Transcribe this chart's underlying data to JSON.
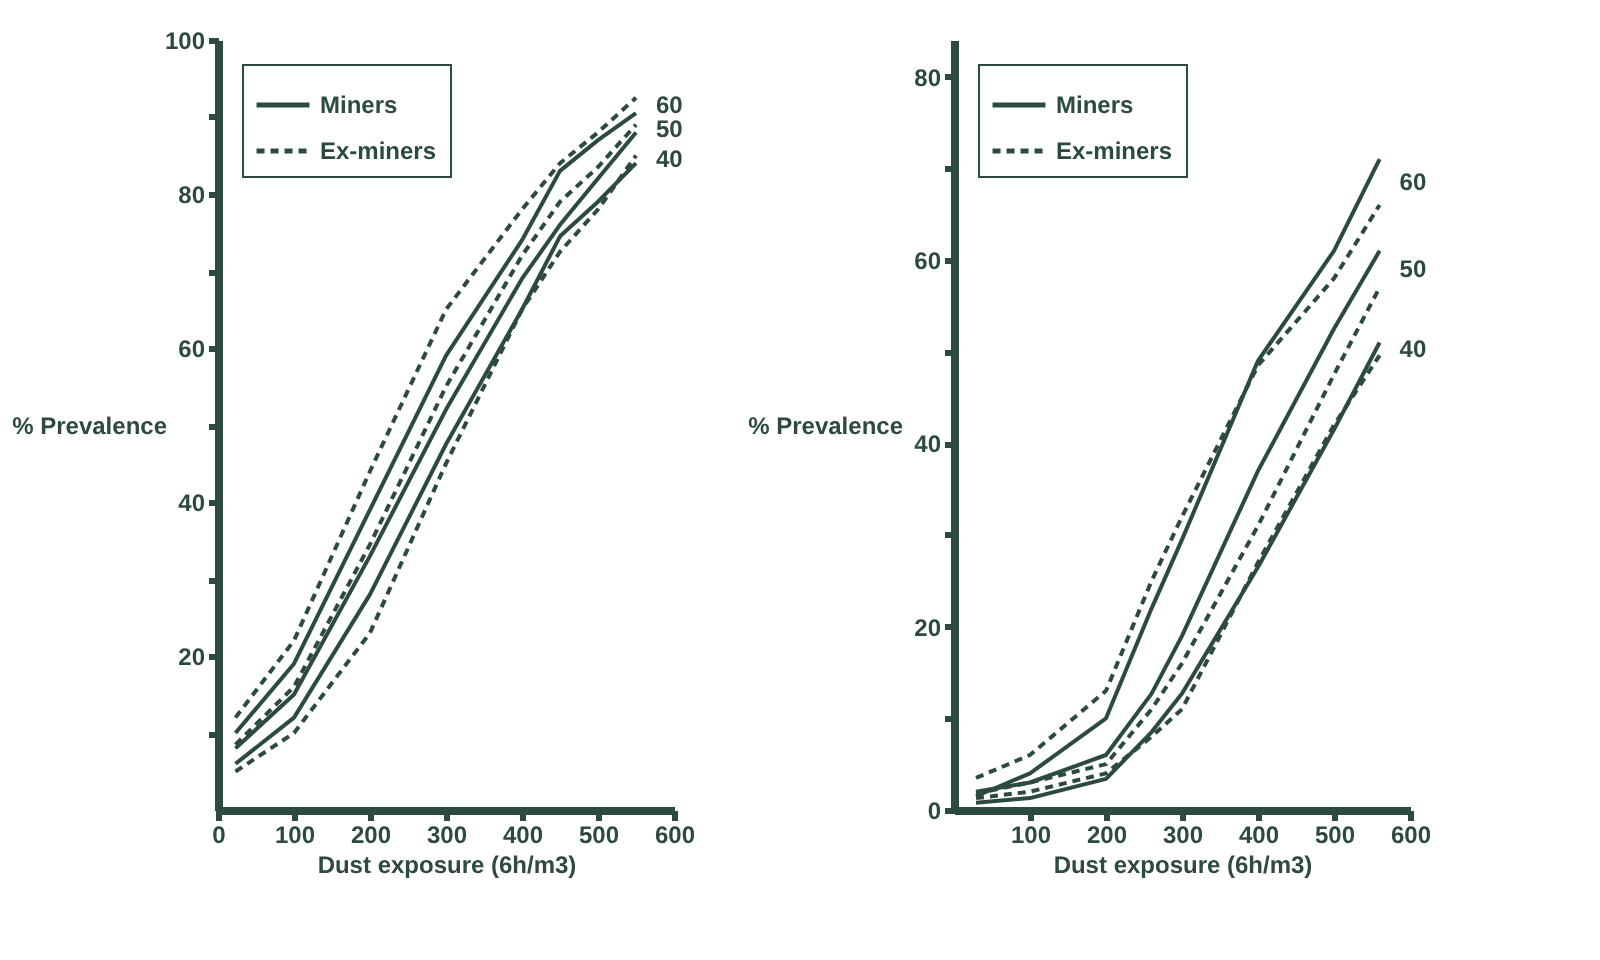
{
  "chart_data": [
    {
      "type": "line",
      "xlabel": "Dust exposure (6h/m3)",
      "ylabel": "% Prevalence",
      "xlim": [
        0,
        600
      ],
      "ylim": [
        0,
        100
      ],
      "xticks": [
        0,
        100,
        200,
        300,
        400,
        500,
        600
      ],
      "yticks": [
        {
          "value": 10,
          "label": null
        },
        20,
        {
          "value": 30,
          "label": null
        },
        40,
        {
          "value": 50,
          "label": null
        },
        60,
        {
          "value": 70,
          "label": null
        },
        80,
        {
          "value": 90,
          "label": null
        },
        100
      ],
      "grid": false,
      "legend": "top left",
      "x": [
        23,
        100,
        200,
        300,
        400,
        450,
        500,
        550
      ],
      "series": [
        {
          "name": "Miners",
          "color": "#2d4a3e",
          "line_style": "solid",
          "values": [
            10,
            19,
            39,
            59,
            74,
            83,
            87,
            90.5
          ]
        },
        {
          "name": "Ex-miners",
          "color": "#2d4a3e",
          "line_style": "dashed",
          "values": [
            12,
            22,
            44,
            65,
            78,
            84,
            88,
            92.5
          ]
        },
        {
          "color": "#2d4a3e",
          "line_style": "solid",
          "values": [
            8,
            15,
            33,
            52,
            69,
            76,
            82,
            88
          ]
        },
        {
          "color": "#2d4a3e",
          "line_style": "dashed",
          "values": [
            8.5,
            16,
            34.5,
            55,
            72,
            79,
            83.5,
            89
          ]
        },
        {
          "color": "#2d4a3e",
          "line_style": "solid",
          "values": [
            6,
            12,
            28,
            47.5,
            65,
            74.5,
            79,
            84
          ]
        },
        {
          "color": "#2d4a3e",
          "line_style": "dashed",
          "values": [
            5,
            10,
            23,
            45,
            65,
            72.5,
            78,
            85
          ]
        }
      ],
      "annotations": [
        "60",
        "50",
        "40"
      ]
    },
    {
      "type": "line",
      "xlabel": "Dust exposure (6h/m3)",
      "ylabel": "% Prevalence",
      "xlim": [
        0,
        600
      ],
      "ylim": [
        0,
        84
      ],
      "xticks": [
        100,
        200,
        300,
        400,
        500,
        600
      ],
      "yticks": [
        0,
        {
          "value": 10,
          "label": null
        },
        20,
        {
          "value": 30,
          "label": null
        },
        40,
        {
          "value": 50,
          "label": null
        },
        60,
        {
          "value": 70,
          "label": null
        },
        80
      ],
      "grid": false,
      "legend": "top left",
      "x": [
        29,
        100,
        200,
        260,
        300,
        400,
        500,
        560
      ],
      "series": [
        {
          "name": "Miners",
          "color": "#2d4a3e",
          "line_style": "solid",
          "values": [
            1.5,
            4,
            10,
            22,
            29.5,
            49,
            61,
            71
          ]
        },
        {
          "name": "Ex-miners",
          "color": "#2d4a3e",
          "line_style": "dashed",
          "values": [
            3.5,
            6,
            13,
            25,
            32,
            48.5,
            58,
            66
          ]
        },
        {
          "color": "#2d4a3e",
          "line_style": "solid",
          "values": [
            2,
            3,
            6,
            12.7,
            19,
            37,
            52.5,
            61
          ]
        },
        {
          "color": "#2d4a3e",
          "line_style": "dashed",
          "values": [
            1.8,
            3,
            5,
            11,
            16,
            31,
            47.5,
            57
          ]
        },
        {
          "color": "#2d4a3e",
          "line_style": "solid",
          "values": [
            0.8,
            1.3,
            3.4,
            8.5,
            12.7,
            26.5,
            41.5,
            51
          ]
        },
        {
          "color": "#2d4a3e",
          "line_style": "dashed",
          "values": [
            1.3,
            2,
            4,
            8,
            11,
            27,
            42,
            49.6
          ]
        }
      ],
      "annotations": [
        "60",
        "50",
        "40"
      ]
    }
  ]
}
